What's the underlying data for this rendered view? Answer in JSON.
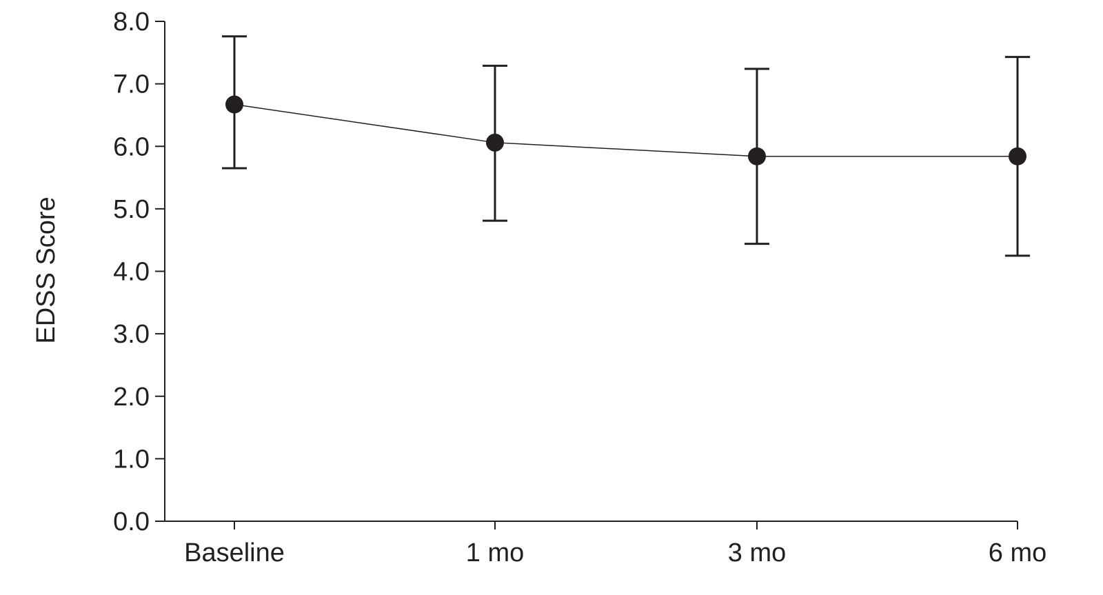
{
  "chart_data": {
    "type": "line",
    "title": "",
    "xlabel": "",
    "ylabel": "EDSS Score",
    "categories": [
      "Baseline",
      "1 mo",
      "3 mo",
      "6 mo"
    ],
    "y_ticks": [
      "0.0",
      "1.0",
      "2.0",
      "3.0",
      "4.0",
      "5.0",
      "6.0",
      "7.0",
      "8.0"
    ],
    "ylim": [
      0,
      8
    ],
    "grid": false,
    "legend": "none",
    "series": [
      {
        "values": [
          6.67,
          6.06,
          5.84,
          5.84
        ],
        "error_upper": [
          7.76,
          7.29,
          7.24,
          7.43
        ],
        "error_lower": [
          5.65,
          4.81,
          4.44,
          4.25
        ]
      }
    ],
    "colors": {
      "ink": "#231f20"
    }
  }
}
